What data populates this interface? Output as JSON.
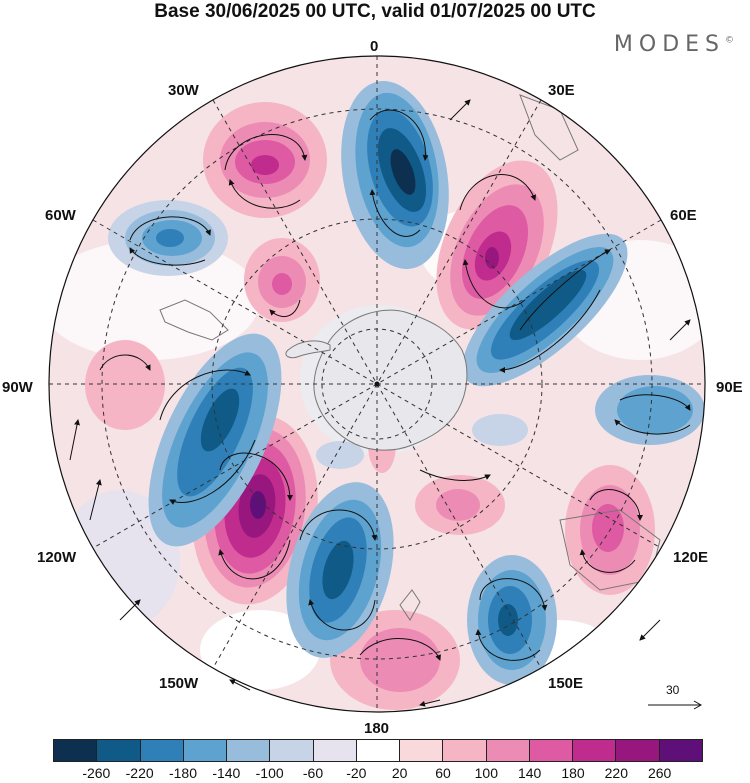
{
  "title": "Base 30/06/2025 00 UTC, valid 01/07/2025 00 UTC",
  "brand": "MODES",
  "brand_mark": "©",
  "longitude_labels": [
    {
      "id": "lon-0",
      "text": "0"
    },
    {
      "id": "lon-30e",
      "text": "30E"
    },
    {
      "id": "lon-60e",
      "text": "60E"
    },
    {
      "id": "lon-90e",
      "text": "90E"
    },
    {
      "id": "lon-120e",
      "text": "120E"
    },
    {
      "id": "lon-150e",
      "text": "150E"
    },
    {
      "id": "lon-180",
      "text": "180"
    },
    {
      "id": "lon-150w",
      "text": "150W"
    },
    {
      "id": "lon-120w",
      "text": "120W"
    },
    {
      "id": "lon-90w",
      "text": "90W"
    },
    {
      "id": "lon-60w",
      "text": "60W"
    },
    {
      "id": "lon-30w",
      "text": "30W"
    }
  ],
  "reference_vector": {
    "value": "30"
  },
  "colorbar": {
    "colors": [
      "#0e3050",
      "#0f5a87",
      "#2f80b8",
      "#5ea2cf",
      "#98bddc",
      "#c7d3e6",
      "#e6e3ef",
      "#ffffff",
      "#f9d9dc",
      "#f5b5c5",
      "#ec8cb5",
      "#de5aa2",
      "#c02b8e",
      "#98177f",
      "#5e0f78"
    ],
    "labels": [
      "-260",
      "-220",
      "-180",
      "-140",
      "-100",
      "-60",
      "-20",
      "20",
      "60",
      "100",
      "140",
      "180",
      "220",
      "260"
    ]
  }
}
